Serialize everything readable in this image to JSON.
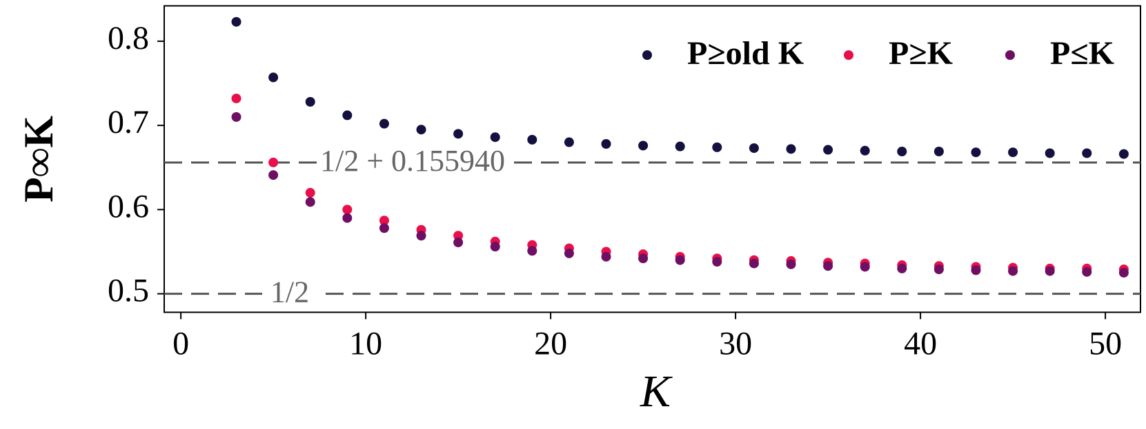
{
  "chart_data": {
    "type": "scatter",
    "xlabel": "K",
    "ylabel": "P∞K",
    "x": [
      3,
      5,
      7,
      9,
      11,
      13,
      15,
      17,
      19,
      21,
      23,
      25,
      27,
      29,
      31,
      33,
      35,
      37,
      39,
      41,
      43,
      45,
      47,
      49,
      51
    ],
    "series": [
      {
        "name": "P≥old K",
        "color": "#14103f",
        "values": [
          0.823,
          0.757,
          0.728,
          0.712,
          0.702,
          0.695,
          0.69,
          0.686,
          0.683,
          0.68,
          0.678,
          0.676,
          0.675,
          0.674,
          0.673,
          0.672,
          0.671,
          0.67,
          0.669,
          0.669,
          0.668,
          0.668,
          0.667,
          0.667,
          0.666
        ]
      },
      {
        "name": "P≥K",
        "color": "#e8104a",
        "values": [
          0.732,
          0.656,
          0.62,
          0.6,
          0.587,
          0.576,
          0.569,
          0.562,
          0.558,
          0.554,
          0.55,
          0.547,
          0.544,
          0.542,
          0.54,
          0.539,
          0.537,
          0.536,
          0.534,
          0.533,
          0.532,
          0.531,
          0.53,
          0.53,
          0.529
        ]
      },
      {
        "name": "P≤K",
        "color": "#6e0f63",
        "values": [
          0.71,
          0.641,
          0.609,
          0.59,
          0.578,
          0.569,
          0.561,
          0.556,
          0.551,
          0.548,
          0.544,
          0.542,
          0.54,
          0.538,
          0.536,
          0.535,
          0.533,
          0.532,
          0.53,
          0.529,
          0.528,
          0.527,
          0.527,
          0.526,
          0.525
        ]
      }
    ],
    "hlines": [
      {
        "y": 0.65594,
        "label": "1/2 + 0.155940"
      },
      {
        "y": 0.5,
        "label": "1/2"
      }
    ],
    "xlim": [
      -0.9,
      51.9
    ],
    "ylim": [
      0.478,
      0.842
    ],
    "xticks": [
      0,
      10,
      20,
      30,
      40,
      50
    ],
    "yticks": [
      0.5,
      0.6,
      0.7,
      0.8
    ],
    "legend": "upper right"
  }
}
